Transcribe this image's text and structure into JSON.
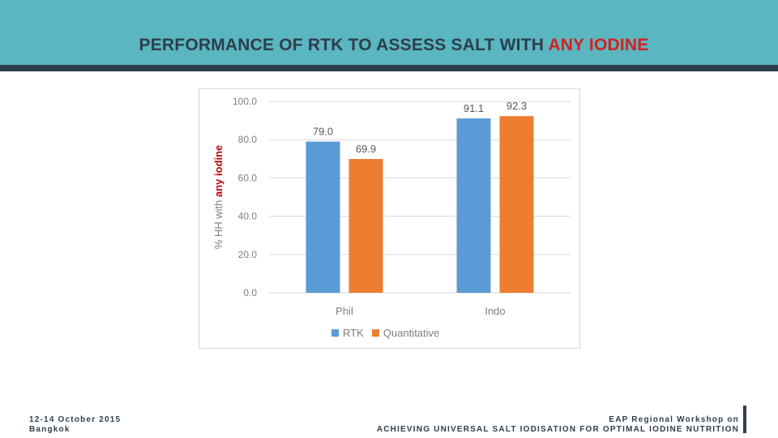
{
  "slide": {
    "title_main": "PERFORMANCE OF RTK TO ASSESS SALT WITH ",
    "title_highlight": "ANY IODINE",
    "footer_left_line1": "12-14 October 2015",
    "footer_left_line2": "Bangkok",
    "footer_right_line1": "EAP Regional Workshop on",
    "footer_right_line2": "ACHIEVING UNIVERSAL SALT IODISATION FOR OPTIMAL IODINE NUTRITION"
  },
  "colors": {
    "header": "#5ab6c0",
    "header_rule": "#2f3e4c",
    "title_highlight": "#d81e1e",
    "rtk": "#5b9bd5",
    "quantitative": "#ed7d31"
  },
  "chart_data": {
    "type": "bar",
    "categories": [
      "Phil",
      "Indo"
    ],
    "series": [
      {
        "name": "RTK",
        "values": [
          79.0,
          91.1
        ],
        "labels": [
          "79.0",
          "91.1"
        ],
        "color": "#5b9bd5"
      },
      {
        "name": "Quantitative",
        "values": [
          69.9,
          92.3
        ],
        "labels": [
          "69.9",
          "92.3"
        ],
        "color": "#ed7d31"
      }
    ],
    "ylabel_prefix": "% HH with ",
    "ylabel_highlight": "any iodine",
    "ylim": [
      0,
      100
    ],
    "yticks": [
      0,
      20,
      40,
      60,
      80,
      100
    ],
    "ytick_labels": [
      "0.0",
      "20.0",
      "40.0",
      "60.0",
      "80.0",
      "100.0"
    ],
    "grid": true,
    "legend": "bottom"
  }
}
